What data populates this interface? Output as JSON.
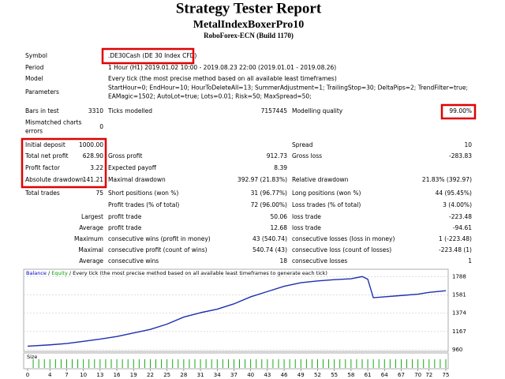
{
  "header": {
    "title": "Strategy Tester Report",
    "subtitle": "MetalIndexBoxerPro10",
    "broker": "RoboForex-ECN (Build 1170)"
  },
  "table": {
    "rows": [
      [
        "Symbol",
        null,
        ".DE30Cash (DE 30 Index CFD)",
        null,
        null,
        null
      ],
      [
        "Period",
        null,
        "1 Hour (H1) 2019.01.02 10:00 - 2019.08.23 22:00 (2019.01.01 - 2019.08.26)",
        null,
        null,
        null
      ],
      [
        "Model",
        null,
        "Every tick (the most precise method based on all available least timeframes)",
        null,
        null,
        null
      ],
      [
        "Parameters",
        null,
        [
          "StartHour=0; EndHour=10; HourToDeleteAll=13; SummerAdjustment=1; TrailingStop=30; DeltaPips=2; TrendFilter=true;",
          "EAMagic=1502; AutoLot=true; Lots=0.01; Risk=50; MaxSpread=50;"
        ],
        null,
        null,
        null
      ],
      [
        "Bars in test",
        "3310",
        "Ticks modelled",
        "7157445",
        "Modelling quality",
        "99.00%"
      ],
      [
        [
          "Mismatched charts",
          "errors"
        ],
        "0",
        null,
        null,
        null,
        null
      ],
      [
        "Initial deposit",
        "1000.00",
        null,
        null,
        "Spread",
        "10"
      ],
      [
        "Total net profit",
        "628.90",
        "Gross profit",
        "912.73",
        "Gross loss",
        "-283.83"
      ],
      [
        "Profit factor",
        "3.22",
        "Expected payoff",
        "8.39",
        null,
        null
      ],
      [
        "Absolute drawdown",
        "141.21",
        "Maximal drawdown",
        "392.97 (21.83%)",
        "Relative drawdown",
        "21.83% (392.97)"
      ],
      [
        "Total trades",
        "75",
        "Short positions (won %)",
        "31 (96.77%)",
        "Long positions (won %)",
        "44 (95.45%)"
      ],
      [
        null,
        null,
        "Profit trades (% of total)",
        "72 (96.00%)",
        "Loss trades (% of total)",
        "3 (4.00%)"
      ],
      [
        null,
        "Largest",
        "profit trade",
        "50.06",
        "loss trade",
        "-223.48"
      ],
      [
        null,
        "Average",
        "profit trade",
        "12.68",
        "loss trade",
        "-94.61"
      ],
      [
        null,
        "Maximum",
        "consecutive wins (profit in money)",
        "43 (540.74)",
        "consecutive losses (loss in money)",
        "1 (-223.48)"
      ],
      [
        null,
        "Maximal",
        "consecutive profit (count of wins)",
        "540.74 (43)",
        "consecutive loss (count of losses)",
        "-223.48 (1)"
      ],
      [
        null,
        "Average",
        "consecutive wins",
        "18",
        "consecutive losses",
        "1"
      ]
    ]
  },
  "chart_data": {
    "type": "line",
    "title_parts": [
      {
        "text": "Balance",
        "color": "#0000c8"
      },
      {
        "text": " / "
      },
      {
        "text": "Equity",
        "color": "#00a000"
      },
      {
        "text": " / Every tick (the most precise method based on all available least timeframes to generate each tick)"
      }
    ],
    "size_label": "Size",
    "x": [
      0,
      4,
      7,
      10,
      13,
      16,
      19,
      22,
      25,
      28,
      31,
      34,
      37,
      40,
      43,
      46,
      49,
      52,
      55,
      58,
      60,
      61,
      62,
      64,
      67,
      70,
      72,
      75
    ],
    "series": [
      {
        "color": "#1c2fae",
        "values": [
          1000,
          1015,
          1030,
          1055,
          1080,
          1110,
          1150,
          1190,
          1250,
          1330,
          1380,
          1420,
          1480,
          1560,
          1620,
          1680,
          1720,
          1740,
          1755,
          1765,
          1790,
          1760,
          1550,
          1560,
          1575,
          1590,
          1610,
          1629
        ]
      }
    ],
    "xlim": [
      0,
      75
    ],
    "xticks": [
      0,
      4,
      7,
      10,
      13,
      16,
      19,
      22,
      25,
      28,
      31,
      34,
      37,
      40,
      43,
      46,
      49,
      52,
      55,
      58,
      61,
      64,
      67,
      70,
      72,
      75
    ],
    "ylim": [
      941,
      1873
    ],
    "yticks": [
      960,
      1167,
      1374,
      1581,
      1788
    ],
    "grid": true,
    "size_color": "#00a000"
  }
}
